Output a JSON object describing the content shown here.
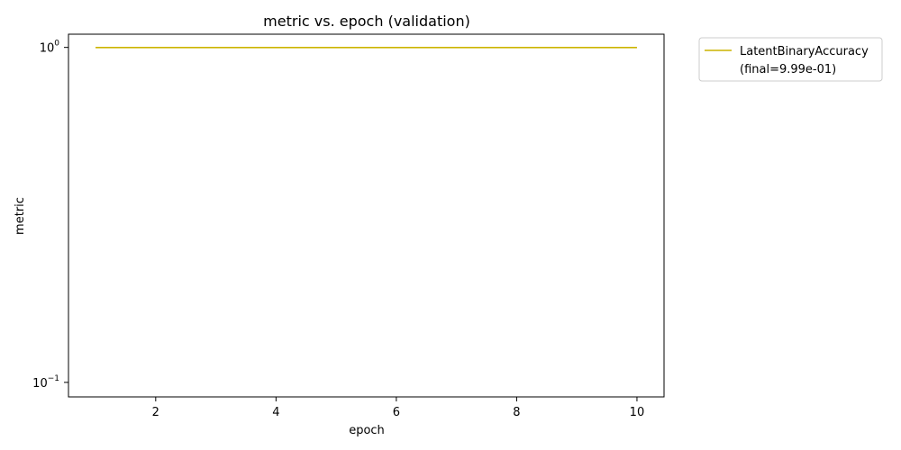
{
  "chart_data": {
    "type": "line",
    "title": "metric vs. epoch (validation)",
    "xlabel": "epoch",
    "ylabel": "metric",
    "xlim": [
      0.55,
      10.45
    ],
    "ylim": [
      0.0905,
      1.095
    ],
    "yscale": "log",
    "grid": false,
    "legend_position": "outside-top-right",
    "x_ticks": [
      2,
      4,
      6,
      8,
      10
    ],
    "x_tick_labels": [
      "2",
      "4",
      "6",
      "8",
      "10"
    ],
    "y_ticks": [
      {
        "value": 1.0,
        "base": "10",
        "exponent": "0"
      },
      {
        "value": 0.1,
        "base": "10",
        "exponent": "−1"
      }
    ],
    "series": [
      {
        "name": "LatentBinaryAccuracy",
        "legend_note": "(final=9.99e-01)",
        "color": "#ccb400",
        "x": [
          1,
          2,
          3,
          4,
          5,
          6,
          7,
          8,
          9,
          10
        ],
        "y": [
          0.999,
          0.999,
          0.999,
          0.999,
          0.999,
          0.999,
          0.999,
          0.999,
          0.999,
          0.999
        ]
      }
    ]
  }
}
